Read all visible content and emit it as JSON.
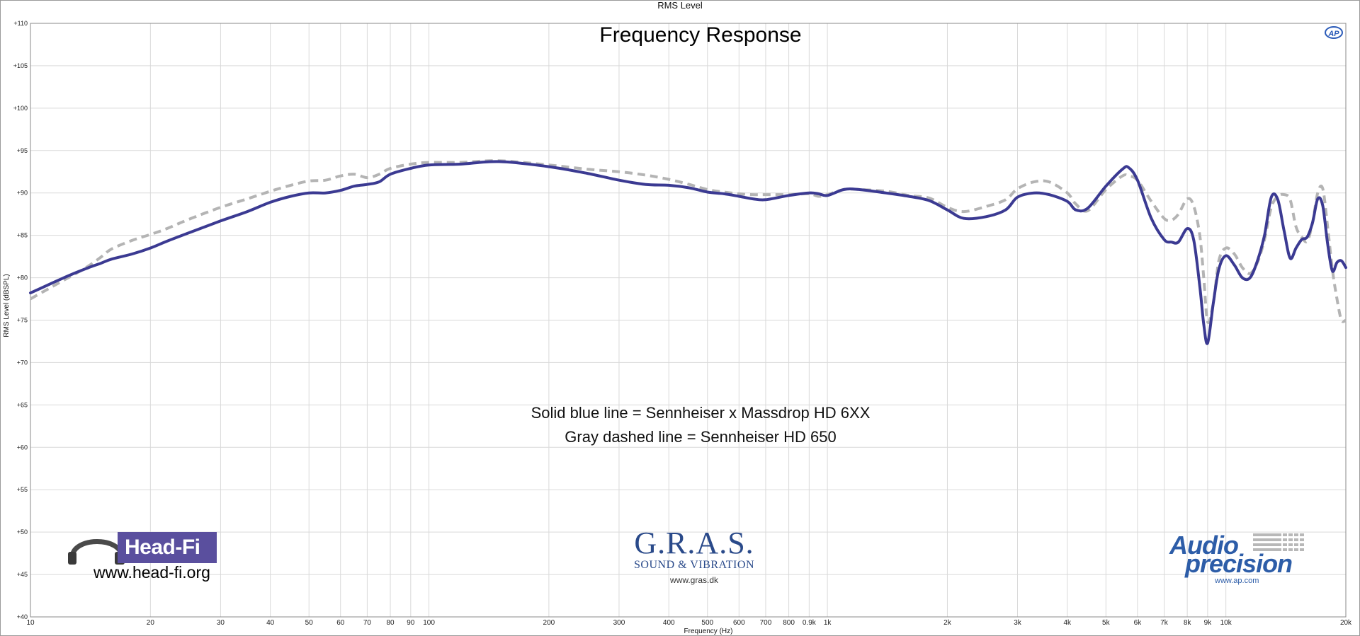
{
  "window": {
    "title": "RMS Level"
  },
  "chart_data": {
    "type": "line",
    "title": "Frequency Response",
    "xlabel": "Frequency (Hz)",
    "ylabel": "RMS Level (dBSPL)",
    "x_scale": "log",
    "xlim": [
      10,
      20000
    ],
    "ylim": [
      40,
      110
    ],
    "grid": true,
    "x_ticks": [
      {
        "value": 10,
        "label": "10"
      },
      {
        "value": 20,
        "label": "20"
      },
      {
        "value": 30,
        "label": "30"
      },
      {
        "value": 40,
        "label": "40"
      },
      {
        "value": 50,
        "label": "50"
      },
      {
        "value": 60,
        "label": "60"
      },
      {
        "value": 70,
        "label": "70"
      },
      {
        "value": 80,
        "label": "80"
      },
      {
        "value": 90,
        "label": "90"
      },
      {
        "value": 100,
        "label": "100"
      },
      {
        "value": 200,
        "label": "200"
      },
      {
        "value": 300,
        "label": "300"
      },
      {
        "value": 400,
        "label": "400"
      },
      {
        "value": 500,
        "label": "500"
      },
      {
        "value": 600,
        "label": "600"
      },
      {
        "value": 700,
        "label": "700"
      },
      {
        "value": 800,
        "label": "800"
      },
      {
        "value": 900,
        "label": "0.9k"
      },
      {
        "value": 1000,
        "label": "1k"
      },
      {
        "value": 2000,
        "label": "2k"
      },
      {
        "value": 3000,
        "label": "3k"
      },
      {
        "value": 4000,
        "label": "4k"
      },
      {
        "value": 5000,
        "label": "5k"
      },
      {
        "value": 6000,
        "label": "6k"
      },
      {
        "value": 7000,
        "label": "7k"
      },
      {
        "value": 8000,
        "label": "8k"
      },
      {
        "value": 9000,
        "label": "9k"
      },
      {
        "value": 10000,
        "label": "10k"
      },
      {
        "value": 20000,
        "label": "20k"
      }
    ],
    "y_ticks": [
      {
        "value": 110,
        "label": "+110"
      },
      {
        "value": 105,
        "label": "+105"
      },
      {
        "value": 100,
        "label": "+100"
      },
      {
        "value": 95,
        "label": "+95"
      },
      {
        "value": 90,
        "label": "+90"
      },
      {
        "value": 85,
        "label": "+85"
      },
      {
        "value": 80,
        "label": "+80"
      },
      {
        "value": 75,
        "label": "+75"
      },
      {
        "value": 70,
        "label": "+70"
      },
      {
        "value": 65,
        "label": "+65"
      },
      {
        "value": 60,
        "label": "+60"
      },
      {
        "value": 55,
        "label": "+55"
      },
      {
        "value": 50,
        "label": "+50"
      },
      {
        "value": 45,
        "label": "+45"
      },
      {
        "value": 40,
        "label": "+40"
      }
    ],
    "annotations": [
      "Solid blue line = Sennheiser x Massdrop HD 6XX",
      "Gray dashed line = Sennheiser HD 650"
    ],
    "series": [
      {
        "style": "solid",
        "color": "#3b3a92",
        "x": [
          10,
          11,
          12,
          13,
          14,
          15,
          16,
          18,
          20,
          22,
          25,
          30,
          35,
          40,
          45,
          50,
          55,
          60,
          65,
          70,
          75,
          80,
          90,
          100,
          120,
          150,
          200,
          250,
          300,
          350,
          400,
          450,
          500,
          550,
          600,
          650,
          700,
          800,
          900,
          950,
          1000,
          1100,
          1200,
          1400,
          1600,
          1800,
          2000,
          2200,
          2500,
          2800,
          3000,
          3300,
          3600,
          4000,
          4200,
          4500,
          5000,
          5500,
          5700,
          6000,
          6500,
          7000,
          7300,
          7600,
          8000,
          8300,
          8600,
          8800,
          9000,
          9300,
          9600,
          10000,
          10500,
          11000,
          11500,
          12000,
          12500,
          13000,
          13500,
          14000,
          14500,
          15000,
          15500,
          16000,
          16500,
          17000,
          17500,
          18000,
          18500,
          19000,
          19500,
          20000
        ],
        "y": [
          78.2,
          79.1,
          79.9,
          80.6,
          81.2,
          81.7,
          82.2,
          82.8,
          83.5,
          84.3,
          85.3,
          86.7,
          87.8,
          88.9,
          89.6,
          90.0,
          90.0,
          90.3,
          90.8,
          91.0,
          91.3,
          92.2,
          92.9,
          93.3,
          93.4,
          93.7,
          93.1,
          92.3,
          91.5,
          91.0,
          90.9,
          90.6,
          90.1,
          89.9,
          89.6,
          89.3,
          89.2,
          89.7,
          90.0,
          89.9,
          89.7,
          90.4,
          90.4,
          90.0,
          89.6,
          89.1,
          88.0,
          87.0,
          87.2,
          88.0,
          89.5,
          90.0,
          89.8,
          89.0,
          88.0,
          88.2,
          90.8,
          92.8,
          93.0,
          91.5,
          87.0,
          84.5,
          84.2,
          84.2,
          85.8,
          84.5,
          79.0,
          74.5,
          72.3,
          77.0,
          81.0,
          82.6,
          81.5,
          80.0,
          80.0,
          82.0,
          85.0,
          89.5,
          89.2,
          85.5,
          82.3,
          83.5,
          84.5,
          84.8,
          86.5,
          89.3,
          88.5,
          84.0,
          80.8,
          81.8,
          82.0,
          81.2
        ]
      },
      {
        "style": "dashed",
        "color": "#b4b4b4",
        "x": [
          10,
          11,
          12,
          13,
          14,
          15,
          16,
          18,
          20,
          22,
          25,
          30,
          35,
          40,
          45,
          50,
          55,
          60,
          65,
          70,
          75,
          80,
          90,
          100,
          120,
          150,
          200,
          250,
          300,
          350,
          400,
          450,
          500,
          550,
          600,
          650,
          700,
          800,
          900,
          950,
          1000,
          1100,
          1200,
          1400,
          1600,
          1800,
          2000,
          2200,
          2500,
          2800,
          3000,
          3300,
          3600,
          4000,
          4200,
          4500,
          5000,
          5500,
          5700,
          6000,
          6500,
          7000,
          7300,
          7600,
          8000,
          8300,
          8600,
          8800,
          9000,
          9300,
          9600,
          10000,
          10500,
          11000,
          11500,
          12000,
          12500,
          13000,
          13500,
          14000,
          14500,
          15000,
          15500,
          16000,
          16500,
          17000,
          17500,
          18000,
          18500,
          19000,
          19500,
          20000
        ],
        "y": [
          77.5,
          78.6,
          79.6,
          80.5,
          81.4,
          82.4,
          83.4,
          84.4,
          85.1,
          85.8,
          86.9,
          88.3,
          89.3,
          90.2,
          90.9,
          91.4,
          91.5,
          92.0,
          92.2,
          91.8,
          92.2,
          92.9,
          93.4,
          93.6,
          93.6,
          93.8,
          93.3,
          92.8,
          92.5,
          92.1,
          91.6,
          91.0,
          90.4,
          90.1,
          89.9,
          89.8,
          89.8,
          89.8,
          89.9,
          89.6,
          89.8,
          90.4,
          90.4,
          90.2,
          89.7,
          89.4,
          88.3,
          87.8,
          88.4,
          89.2,
          90.5,
          91.3,
          91.3,
          90.0,
          88.7,
          87.9,
          90.4,
          92.0,
          92.0,
          91.5,
          89.0,
          87.0,
          86.8,
          87.5,
          89.3,
          88.5,
          85.0,
          80.0,
          74.8,
          77.0,
          82.0,
          83.5,
          82.8,
          81.2,
          80.5,
          81.8,
          84.5,
          88.3,
          89.6,
          89.8,
          89.2,
          86.0,
          84.8,
          84.3,
          86.5,
          90.0,
          90.5,
          86.0,
          81.0,
          77.5,
          75.0,
          75.0
        ]
      }
    ]
  },
  "logos": {
    "headfi": {
      "name": "Head-Fi",
      "url": "www.head-fi.org"
    },
    "gras": {
      "name": "G.R.A.S.",
      "sub": "SOUND & VIBRATION",
      "url": "www.gras.dk"
    },
    "ap": {
      "mark": "AP",
      "word1": "Audio",
      "word2": "precision",
      "url": "www.ap.com"
    }
  }
}
